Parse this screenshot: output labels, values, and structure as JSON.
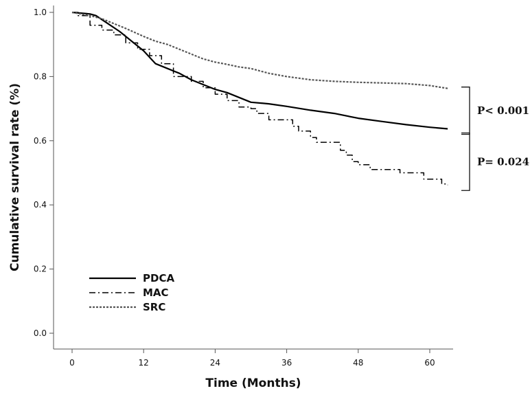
{
  "chart_data": {
    "type": "line",
    "title": "",
    "xlabel": "Time (Months)",
    "ylabel": "Cumulative survival rate (%)",
    "xlim": [
      -6,
      63
    ],
    "ylim": [
      -0.02,
      1.0
    ],
    "x_ticks": [
      0,
      12,
      24,
      36,
      48,
      60
    ],
    "x_tick_labels": [
      "0",
      "12",
      "24",
      "36",
      "48",
      "60"
    ],
    "y_ticks": [
      0.0,
      0.2,
      0.4,
      0.6,
      0.8,
      1.0
    ],
    "y_tick_labels": [
      "0.0",
      "0.2",
      "0.4",
      "0.6",
      "0.8",
      "1.0"
    ],
    "grid": false,
    "legend_position": "bottom-left",
    "series": [
      {
        "name": "PDCA",
        "color": "#000000",
        "style": "solid",
        "step": false,
        "points": [
          [
            0,
            1.0
          ],
          [
            3,
            0.995
          ],
          [
            4,
            0.99
          ],
          [
            6,
            0.965
          ],
          [
            8,
            0.94
          ],
          [
            10,
            0.91
          ],
          [
            12,
            0.88
          ],
          [
            14,
            0.84
          ],
          [
            16,
            0.825
          ],
          [
            18,
            0.81
          ],
          [
            20,
            0.79
          ],
          [
            22,
            0.775
          ],
          [
            24,
            0.76
          ],
          [
            26,
            0.75
          ],
          [
            28,
            0.735
          ],
          [
            30,
            0.72
          ],
          [
            33,
            0.715
          ],
          [
            36,
            0.707
          ],
          [
            40,
            0.695
          ],
          [
            44,
            0.685
          ],
          [
            48,
            0.67
          ],
          [
            52,
            0.66
          ],
          [
            56,
            0.65
          ],
          [
            60,
            0.642
          ],
          [
            63,
            0.637
          ]
        ]
      },
      {
        "name": "MAC",
        "color": "#000000",
        "style": "dashdot",
        "step": true,
        "points": [
          [
            0,
            1.0
          ],
          [
            1,
            0.99
          ],
          [
            3,
            0.96
          ],
          [
            5,
            0.945
          ],
          [
            7,
            0.93
          ],
          [
            9,
            0.905
          ],
          [
            11,
            0.885
          ],
          [
            13,
            0.865
          ],
          [
            15,
            0.84
          ],
          [
            17,
            0.8
          ],
          [
            20,
            0.785
          ],
          [
            22,
            0.765
          ],
          [
            24,
            0.745
          ],
          [
            26,
            0.725
          ],
          [
            28,
            0.705
          ],
          [
            30,
            0.7
          ],
          [
            31,
            0.685
          ],
          [
            33,
            0.665
          ],
          [
            37,
            0.645
          ],
          [
            38,
            0.63
          ],
          [
            40,
            0.61
          ],
          [
            41,
            0.595
          ],
          [
            45,
            0.57
          ],
          [
            46,
            0.555
          ],
          [
            47,
            0.535
          ],
          [
            48,
            0.525
          ],
          [
            50,
            0.51
          ],
          [
            55,
            0.5
          ],
          [
            59,
            0.48
          ],
          [
            62,
            0.465
          ],
          [
            63,
            0.462
          ]
        ]
      },
      {
        "name": "SRC",
        "color": "#555555",
        "style": "dotted",
        "step": false,
        "points": [
          [
            0,
            1.0
          ],
          [
            3,
            0.99
          ],
          [
            5,
            0.98
          ],
          [
            7,
            0.965
          ],
          [
            9,
            0.95
          ],
          [
            12,
            0.925
          ],
          [
            14,
            0.91
          ],
          [
            16,
            0.9
          ],
          [
            18,
            0.885
          ],
          [
            20,
            0.87
          ],
          [
            22,
            0.855
          ],
          [
            24,
            0.845
          ],
          [
            26,
            0.838
          ],
          [
            28,
            0.83
          ],
          [
            30,
            0.825
          ],
          [
            33,
            0.81
          ],
          [
            36,
            0.8
          ],
          [
            40,
            0.79
          ],
          [
            44,
            0.785
          ],
          [
            48,
            0.782
          ],
          [
            52,
            0.78
          ],
          [
            56,
            0.778
          ],
          [
            60,
            0.772
          ],
          [
            63,
            0.763
          ]
        ]
      }
    ],
    "annotations": [
      {
        "text": "P< 0.001",
        "between": [
          "SRC",
          "PDCA"
        ]
      },
      {
        "text": "P= 0.024",
        "between": [
          "PDCA",
          "MAC"
        ]
      }
    ]
  }
}
